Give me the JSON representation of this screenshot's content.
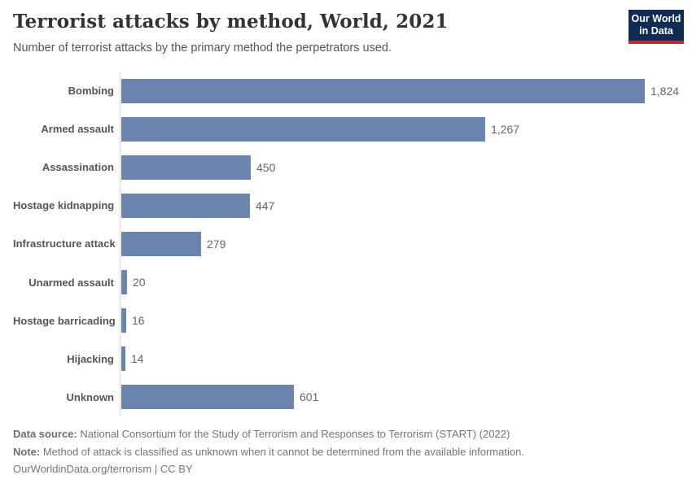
{
  "header": {
    "title": "Terrorist attacks by method, World, 2021",
    "subtitle": "Number of terrorist attacks by the primary method the perpetrators used.",
    "logo": {
      "line1": "Our World",
      "line2": "in Data",
      "bg_color": "#102c52",
      "accent_color": "#be2a2e"
    }
  },
  "chart_data": {
    "type": "bar",
    "orientation": "horizontal",
    "title": "Terrorist attacks by method, World, 2021",
    "xlabel": "",
    "ylabel": "",
    "categories": [
      "Bombing",
      "Armed assault",
      "Assassination",
      "Hostage kidnapping",
      "Infrastructure attack",
      "Unarmed assault",
      "Hostage barricading",
      "Hijacking",
      "Unknown"
    ],
    "values": [
      1824,
      1267,
      450,
      447,
      279,
      20,
      16,
      14,
      601
    ],
    "value_labels": [
      "1,824",
      "1,267",
      "450",
      "447",
      "279",
      "20",
      "16",
      "14",
      "601"
    ],
    "bar_color": "#6c85ae",
    "axis_line_color": "#dadada",
    "xlim": [
      0,
      1824
    ],
    "grid": false,
    "legend": "none",
    "value_label_position": "right-of-bar"
  },
  "footer": {
    "data_source_label": "Data source:",
    "data_source_text": " National Consortium for the Study of Terrorism and Responses to Terrorism (START) (2022)",
    "note_label": "Note:",
    "note_text": " Method of attack is classified as unknown when it cannot be determined from the available information.",
    "url": "OurWorldinData.org/terrorism",
    "separator": " | ",
    "license": "CC BY"
  }
}
